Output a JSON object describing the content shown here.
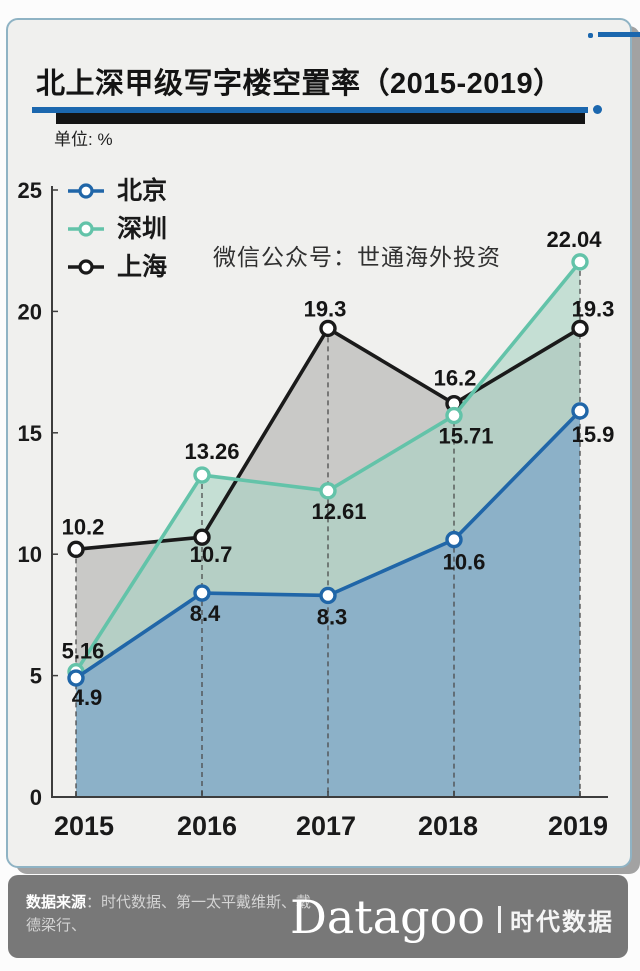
{
  "header": {
    "title": "北上深甲级写字楼空置率（2015-2019）",
    "unit": "单位: %"
  },
  "watermark": "微信公众号：世通海外投资",
  "chart_data": {
    "type": "line",
    "title": "北上深甲级写字楼空置率（2015-2019）",
    "unit": "%",
    "categories": [
      "2015",
      "2016",
      "2017",
      "2018",
      "2019"
    ],
    "series": [
      {
        "name": "北京",
        "color": "#2066a8",
        "fill": "#8aafc8",
        "fill_opacity": 0.95,
        "values": [
          4.9,
          8.4,
          8.3,
          10.6,
          15.9
        ]
      },
      {
        "name": "深圳",
        "color": "#63c3a9",
        "fill": "#a9d4c3",
        "fill_opacity": 0.6,
        "values": [
          5.16,
          13.26,
          12.61,
          15.71,
          22.04
        ]
      },
      {
        "name": "上海",
        "color": "#1a1a1a",
        "fill": "#c6c6c4",
        "fill_opacity": 0.95,
        "values": [
          10.2,
          10.7,
          19.3,
          16.2,
          19.3
        ]
      }
    ],
    "ylim": [
      0,
      25
    ],
    "yticks": [
      0,
      5,
      10,
      15,
      20,
      25
    ],
    "grid": false,
    "legend_position": "top-left",
    "marker": "open-circle",
    "guides": "dashed-vertical-from-max-point-to-axis",
    "area_fill": "stacked-translucent"
  },
  "footer": {
    "source_label": "数据来源",
    "source_text": "：时代数据、第一太平戴维斯、戴德梁行、",
    "logo_latin": "Datagoo",
    "logo_cn": "时代数据"
  },
  "colors": {
    "accent_blue": "#1b67ae",
    "accent_black": "#141414",
    "card_border": "#8fb3c4",
    "card_bg": "#f0f0ee",
    "footer_bg": "#787878",
    "axis": "#3d3d3d"
  }
}
